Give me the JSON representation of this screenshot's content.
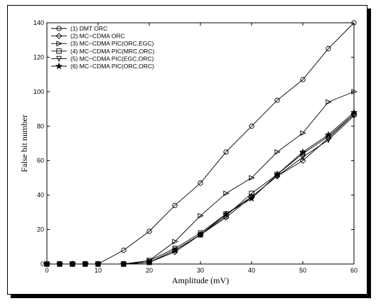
{
  "chart_data": {
    "type": "line",
    "title": "",
    "xlabel": "Amplitude (mV)",
    "ylabel": "False bit number",
    "xlim": [
      0,
      60
    ],
    "ylim": [
      0,
      140
    ],
    "xticks": [
      0,
      10,
      20,
      30,
      40,
      50,
      60
    ],
    "yticks": [
      0,
      20,
      40,
      60,
      80,
      100,
      120,
      140
    ],
    "grid": false,
    "legend_position": "top-left",
    "x": [
      0,
      2.5,
      5,
      7.5,
      10,
      15,
      20,
      25,
      30,
      35,
      40,
      45,
      50,
      55,
      60
    ],
    "series": [
      {
        "name": "(1) DMT ORC",
        "marker": "circle",
        "values": [
          0,
          0,
          0,
          0,
          0,
          8,
          19,
          34,
          47,
          65,
          80,
          95,
          107,
          125,
          140
        ]
      },
      {
        "name": "(2) MC−CDMA ORC",
        "marker": "diamond",
        "values": [
          0,
          0,
          0,
          0,
          0,
          0,
          1,
          7,
          17,
          27,
          39,
          51,
          60,
          73,
          87
        ]
      },
      {
        "name": "(3) MC−CDMA PIC(ORC,EGC)",
        "marker": "triangle-right",
        "values": [
          0,
          0,
          0,
          0,
          0,
          0,
          2,
          13,
          28,
          41,
          50,
          65,
          76,
          94,
          100
        ]
      },
      {
        "name": "(4) MC−CDMA PIC(MRC,ORC)",
        "marker": "square",
        "values": [
          0,
          0,
          0,
          0,
          0,
          0,
          1,
          8,
          17,
          28,
          41,
          52,
          64,
          74,
          87
        ]
      },
      {
        "name": "(5) MC−CDMA PIC(EGC,ORC)",
        "marker": "triangle-down",
        "values": [
          0,
          0,
          0,
          0,
          0,
          0,
          2,
          9,
          18,
          29,
          39,
          51,
          62,
          72,
          86
        ]
      },
      {
        "name": "(6) MC−CDMA PIC(ORC,ORC)",
        "marker": "star",
        "values": [
          0,
          0,
          0,
          0,
          0,
          0,
          1,
          8,
          17,
          29,
          38,
          52,
          65,
          75,
          88
        ]
      }
    ]
  }
}
